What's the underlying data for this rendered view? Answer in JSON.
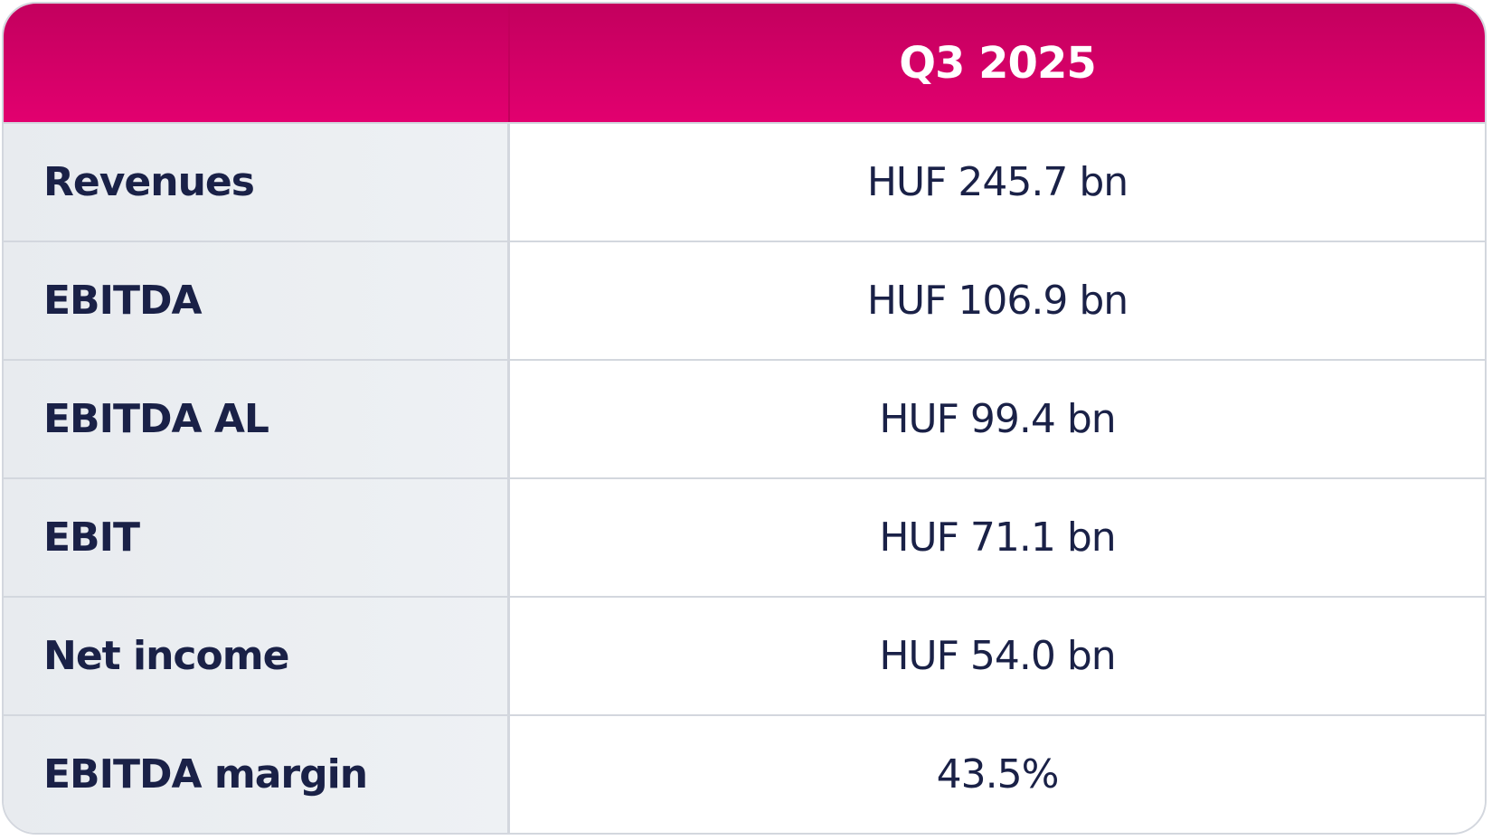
{
  "table": {
    "header": "Q3 2025",
    "rows": [
      [
        "Revenues",
        "HUF 245.7 bn"
      ],
      [
        "EBITDA",
        "HUF 106.9 bn"
      ],
      [
        "EBITDA AL",
        "HUF 99.4 bn"
      ],
      [
        "EBIT",
        "HUF 71.1 bn"
      ],
      [
        "Net income",
        "HUF 54.0 bn"
      ],
      [
        "EBITDA margin",
        "43.5%"
      ]
    ]
  }
}
